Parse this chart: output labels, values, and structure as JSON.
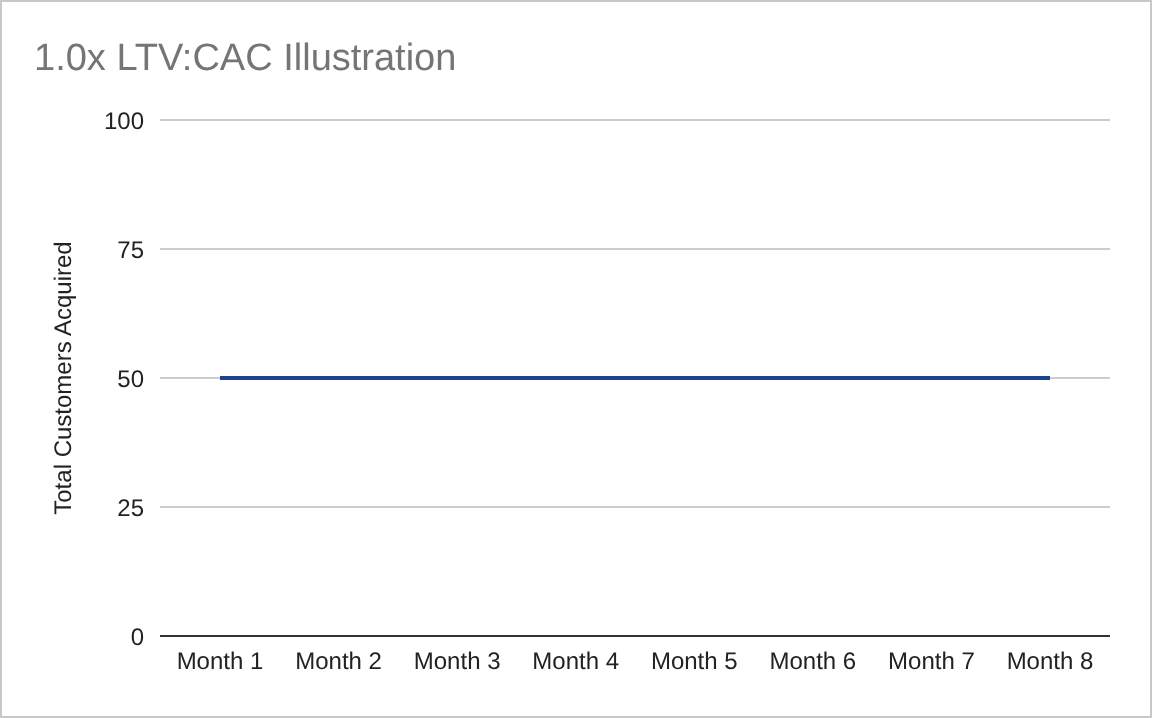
{
  "chart_data": {
    "type": "line",
    "title": "1.0x LTV:CAC Illustration",
    "ylabel": "Total Customers Acquired",
    "categories": [
      "Month 1",
      "Month 2",
      "Month 3",
      "Month 4",
      "Month 5",
      "Month 6",
      "Month 7",
      "Month 8"
    ],
    "series": [
      {
        "color": "#1c4587",
        "values": [
          50,
          50,
          50,
          50,
          50,
          50,
          50,
          50
        ]
      }
    ],
    "ylim": [
      0,
      100
    ],
    "yticks": [
      0,
      25,
      50,
      75,
      100
    ],
    "grid": "y",
    "marker": "none",
    "line_style": "solid"
  }
}
